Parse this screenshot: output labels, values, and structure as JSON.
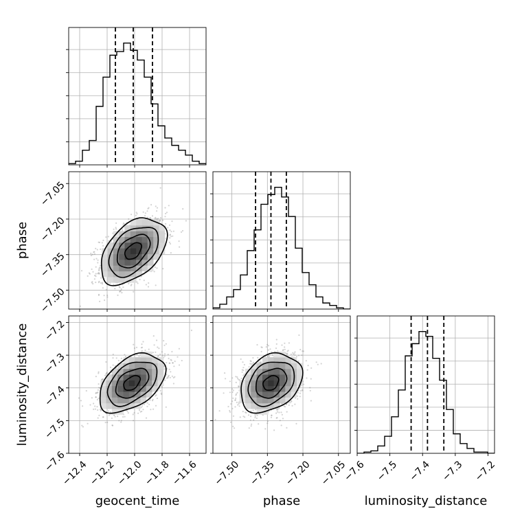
{
  "chart_data": {
    "type": "corner",
    "parameters": [
      "geocent_time",
      "phase",
      "luminosity_distance"
    ],
    "ranges": {
      "geocent_time": [
        -12.48,
        -11.48
      ],
      "phase": [
        -7.58,
        -7.0
      ],
      "luminosity_distance": [
        -7.6,
        -7.18
      ]
    },
    "ticks": {
      "geocent_time": [
        -12.4,
        -12.2,
        -12.0,
        -11.8,
        -11.6
      ],
      "phase": [
        -7.5,
        -7.35,
        -7.2,
        -7.05
      ],
      "luminosity_distance": [
        -7.6,
        -7.5,
        -7.4,
        -7.3,
        -7.2
      ]
    },
    "tick_labels": {
      "geocent_time": [
        "−12.4",
        "−12.2",
        "−12.0",
        "−11.8",
        "−11.6"
      ],
      "phase": [
        "−7.50",
        "−7.35",
        "−7.20",
        "−7.05"
      ],
      "luminosity_distance": [
        "−7.6",
        "−7.5",
        "−7.4",
        "−7.3",
        "−7.2"
      ]
    },
    "quantiles": {
      "geocent_time": [
        -12.14,
        -12.01,
        -11.87
      ],
      "phase": [
        -7.4,
        -7.335,
        -7.27
      ],
      "luminosity_distance": [
        -7.435,
        -7.385,
        -7.335
      ]
    },
    "hist_1d": {
      "geocent_time": {
        "edges_start": -12.48,
        "bin_width": 0.05,
        "counts": [
          0.01,
          0.03,
          0.12,
          0.2,
          0.48,
          0.72,
          0.9,
          0.93,
          1.0,
          0.94,
          0.86,
          0.72,
          0.5,
          0.32,
          0.22,
          0.16,
          0.12,
          0.08,
          0.03,
          0.01
        ]
      },
      "phase": {
        "edges_start": -7.58,
        "bin_width": 0.029,
        "counts": [
          0.01,
          0.04,
          0.1,
          0.16,
          0.28,
          0.48,
          0.65,
          0.86,
          0.94,
          1.0,
          0.92,
          0.76,
          0.5,
          0.3,
          0.2,
          0.1,
          0.05,
          0.03,
          0.01,
          0.0
        ]
      },
      "luminosity_distance": {
        "edges_start": -7.6,
        "bin_width": 0.021,
        "counts": [
          0.0,
          0.01,
          0.02,
          0.06,
          0.14,
          0.3,
          0.52,
          0.8,
          0.9,
          1.0,
          0.96,
          0.78,
          0.6,
          0.36,
          0.16,
          0.08,
          0.04,
          0.01,
          0.01,
          0.0
        ]
      }
    },
    "posterior_2d": {
      "geocent_time|phase": {
        "mean": [
          -12.01,
          -7.335
        ],
        "sd": [
          0.12,
          0.07
        ],
        "corr": 0.45
      },
      "geocent_time|luminosity_distance": {
        "mean": [
          -12.02,
          -7.385
        ],
        "sd": [
          0.12,
          0.045
        ],
        "corr": 0.45
      },
      "phase|luminosity_distance": {
        "mean": [
          -7.335,
          -7.385
        ],
        "sd": [
          0.065,
          0.045
        ],
        "corr": 0.3
      }
    },
    "contour_levels_sigma": [
      0.5,
      1.0,
      1.5,
      2.0
    ],
    "grid": true,
    "colors": {
      "hist": "#000000",
      "points": "#808080",
      "contour": "#000000",
      "grid": "#b0b0b0",
      "density_max": "#303030"
    }
  }
}
